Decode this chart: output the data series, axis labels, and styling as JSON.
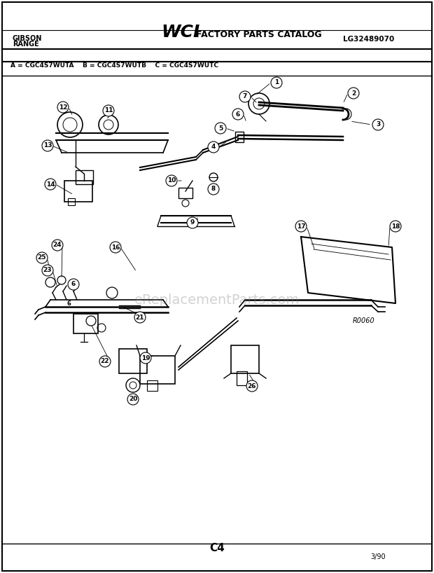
{
  "title": "WCI FACTORY PARTS CATALOG",
  "brand": "GIBSON\nRANGE",
  "model": "LG32489070",
  "model_variants": "A = CGC4S7WUTA    B = CGC4S7WUTB    C = CGC4S7WUTC",
  "page_id": "C4",
  "page_date": "3/90",
  "diagram_code": "R0060",
  "bg_color": "#ffffff",
  "border_color": "#000000",
  "line_color": "#000000",
  "text_color": "#000000",
  "watermark": "eReplacementParts.com"
}
